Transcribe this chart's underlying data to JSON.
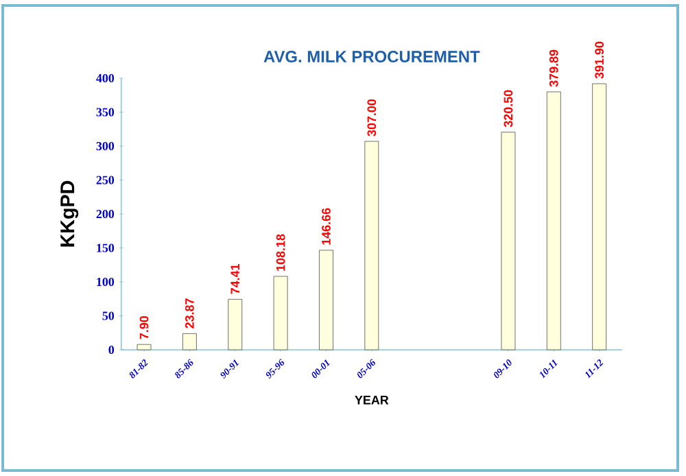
{
  "chart_data": {
    "type": "bar",
    "title": "AVG. MILK PROCUREMENT",
    "xlabel": "YEAR",
    "ylabel": "KKgPD",
    "categories": [
      "81-82",
      "85-86",
      "90-91",
      "95-96",
      "00-01",
      "05-06",
      null,
      null,
      "09-10",
      "10-11",
      "11-12"
    ],
    "values": [
      7.9,
      23.87,
      74.41,
      108.18,
      146.66,
      307.0,
      null,
      null,
      320.5,
      379.89,
      391.9
    ],
    "value_labels": [
      "7.90",
      "23.87",
      "74.41",
      "108.18",
      "146.66",
      "307.00",
      null,
      null,
      "320.50",
      "379.89",
      "391.90"
    ],
    "color": "#ffffdd",
    "ylim": [
      0,
      400
    ],
    "yticks": [
      0,
      50,
      100,
      150,
      200,
      250,
      300,
      350,
      400
    ]
  }
}
